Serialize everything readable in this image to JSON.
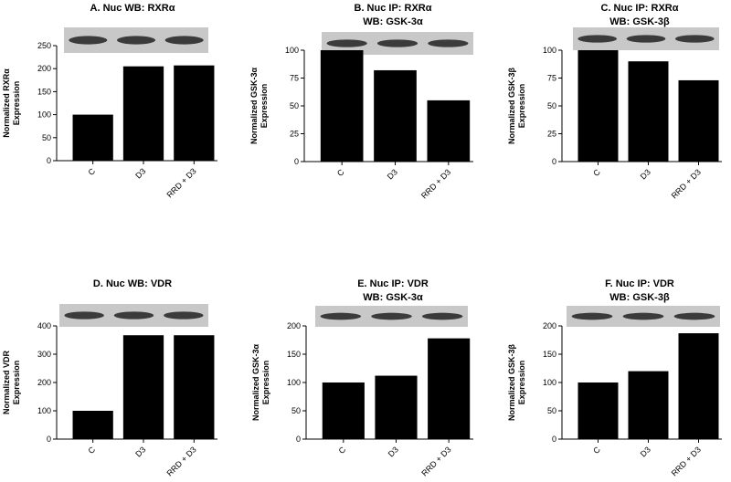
{
  "chart_data": [
    {
      "type": "bar",
      "title": [
        "A. Nuc WB: RXRα"
      ],
      "ylabel": [
        "Normalized RXRα",
        "Expression"
      ],
      "categories": [
        "C",
        "D3",
        "RRD + D3"
      ],
      "values": [
        100,
        205,
        207
      ],
      "color": "#000000",
      "ylim": [
        0,
        250
      ],
      "yticks": [
        0,
        50,
        100,
        150,
        200,
        250
      ]
    },
    {
      "type": "bar",
      "title": [
        "B. Nuc IP: RXRα",
        "WB: GSK-3α"
      ],
      "ylabel": [
        "Normalized GSK-3α",
        "Expression"
      ],
      "categories": [
        "C",
        "D3",
        "RRD + D3"
      ],
      "values": [
        100,
        82,
        55
      ],
      "color": "#000000",
      "ylim": [
        0,
        100
      ],
      "yticks": [
        0,
        25,
        50,
        75,
        100
      ]
    },
    {
      "type": "bar",
      "title": [
        "C. Nuc IP: RXRα",
        "WB: GSK-3β"
      ],
      "ylabel": [
        "Normalized GSK-3β",
        "Expression"
      ],
      "categories": [
        "C",
        "D3",
        "RRD + D3"
      ],
      "values": [
        100,
        90,
        73
      ],
      "color": "#000000",
      "ylim": [
        0,
        100
      ],
      "yticks": [
        0,
        25,
        50,
        75,
        100
      ]
    },
    {
      "type": "bar",
      "title": [
        "D. Nuc WB: VDR"
      ],
      "ylabel": [
        "Normalized VDR",
        "Expression"
      ],
      "categories": [
        "C",
        "D3",
        "RRD + D3"
      ],
      "values": [
        100,
        367,
        367
      ],
      "color": "#000000",
      "ylim": [
        0,
        400
      ],
      "yticks": [
        0,
        100,
        200,
        300,
        400
      ]
    },
    {
      "type": "bar",
      "title": [
        "E. Nuc IP: VDR",
        "WB: GSK-3α"
      ],
      "ylabel": [
        "Normalized GSK-3α",
        "Expression"
      ],
      "categories": [
        "C",
        "D3",
        "RRD + D3"
      ],
      "values": [
        100,
        112,
        178
      ],
      "color": "#000000",
      "ylim": [
        0,
        200
      ],
      "yticks": [
        0,
        50,
        100,
        150,
        200
      ]
    },
    {
      "type": "bar",
      "title": [
        "F. Nuc IP: VDR",
        "WB: GSK-3β"
      ],
      "ylabel": [
        "Normalized GSK-3β",
        "Expression"
      ],
      "categories": [
        "C",
        "D3",
        "RRD + D3"
      ],
      "values": [
        100,
        120,
        187
      ],
      "color": "#000000",
      "ylim": [
        0,
        200
      ],
      "yticks": [
        0,
        50,
        100,
        150,
        200
      ]
    }
  ]
}
